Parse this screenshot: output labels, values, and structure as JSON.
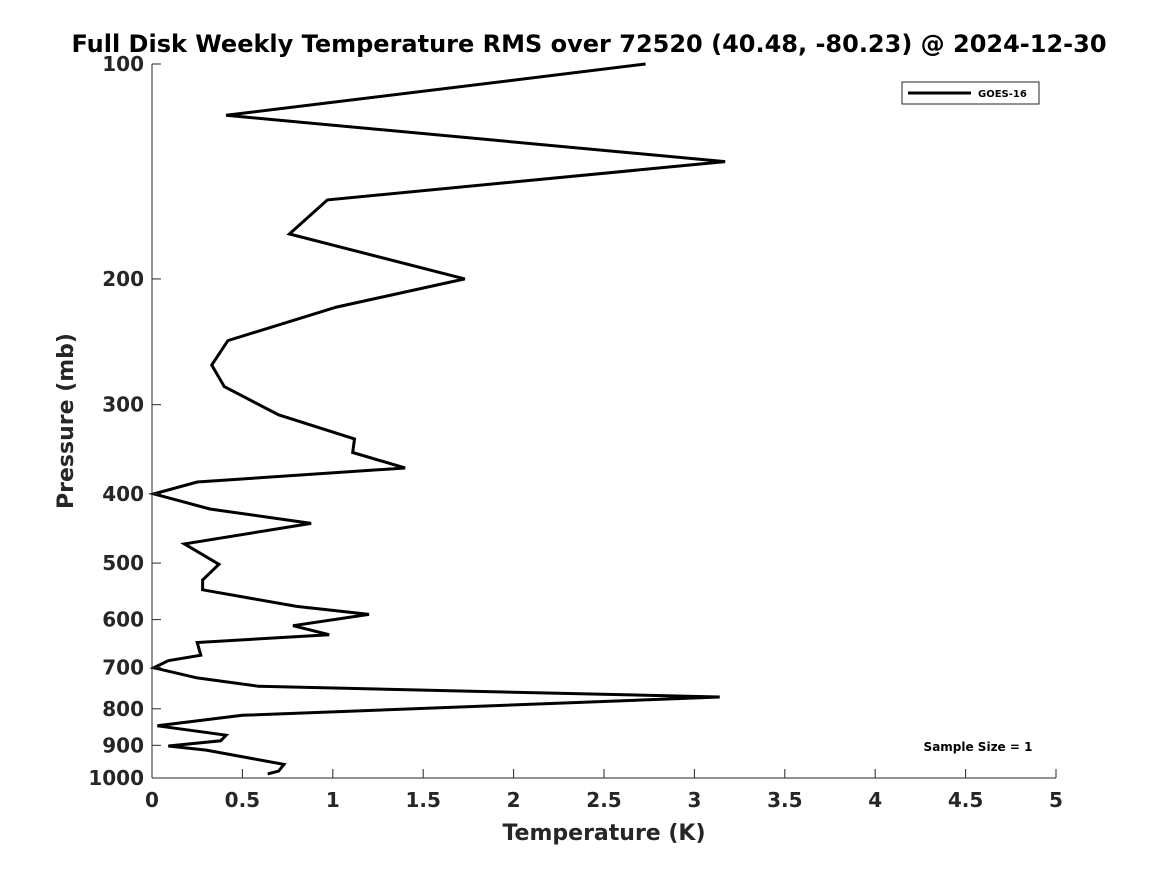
{
  "chart_data": {
    "type": "line",
    "title": "Full Disk Weekly Temperature RMS over 72520 (40.48, -80.23) @ 2024-12-30",
    "xlabel": "Temperature (K)",
    "ylabel": "Pressure (mb)",
    "xlim": [
      0,
      5
    ],
    "ylim": [
      1000,
      100
    ],
    "y_scale": "log",
    "x_ticks": [
      0,
      0.5,
      1,
      1.5,
      2,
      2.5,
      3,
      3.5,
      4,
      4.5,
      5
    ],
    "x_tick_labels": [
      "0",
      "0.5",
      "1",
      "1.5",
      "2",
      "2.5",
      "3",
      "3.5",
      "4",
      "4.5",
      "5"
    ],
    "y_ticks": [
      100,
      200,
      300,
      400,
      500,
      600,
      700,
      800,
      900,
      1000
    ],
    "y_tick_labels": [
      "100",
      "200",
      "300",
      "400",
      "500",
      "600",
      "700",
      "800",
      "900",
      "1000"
    ],
    "grid": false,
    "legend_position": "top-right",
    "annotation": "Sample Size = 1",
    "series": [
      {
        "name": "GOES-16",
        "color": "#000000",
        "points": [
          [
            2.73,
            100
          ],
          [
            0.41,
            118
          ],
          [
            3.17,
            137
          ],
          [
            0.97,
            155
          ],
          [
            0.76,
            173
          ],
          [
            1.73,
            200
          ],
          [
            1.02,
            219
          ],
          [
            0.42,
            244
          ],
          [
            0.33,
            264
          ],
          [
            0.4,
            283
          ],
          [
            0.7,
            310
          ],
          [
            1.12,
            335
          ],
          [
            1.11,
            350
          ],
          [
            1.4,
            368
          ],
          [
            0.25,
            385
          ],
          [
            0.01,
            400
          ],
          [
            0.32,
            420
          ],
          [
            0.88,
            440
          ],
          [
            0.18,
            470
          ],
          [
            0.37,
            502
          ],
          [
            0.28,
            528
          ],
          [
            0.28,
            545
          ],
          [
            0.8,
            575
          ],
          [
            1.2,
            590
          ],
          [
            0.78,
            612
          ],
          [
            0.98,
            630
          ],
          [
            0.25,
            646
          ],
          [
            0.27,
            673
          ],
          [
            0.09,
            685
          ],
          [
            0.01,
            701
          ],
          [
            0.25,
            724
          ],
          [
            0.59,
            744
          ],
          [
            3.14,
            770
          ],
          [
            0.5,
            817
          ],
          [
            0.03,
            845
          ],
          [
            0.41,
            871
          ],
          [
            0.38,
            887
          ],
          [
            0.09,
            902
          ],
          [
            0.3,
            914
          ],
          [
            0.73,
            957
          ],
          [
            0.7,
            978
          ],
          [
            0.64,
            987
          ]
        ]
      }
    ]
  }
}
